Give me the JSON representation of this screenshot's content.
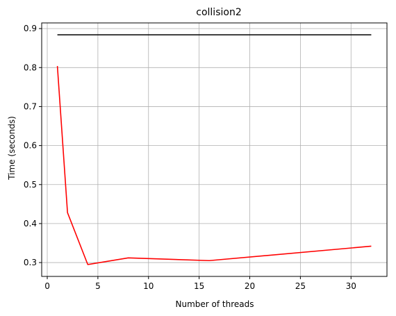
{
  "chart_data": {
    "type": "line",
    "title": "collision2",
    "xlabel": "Number of threads",
    "ylabel": "Time (seconds)",
    "xlim": [
      -0.55,
      33.55
    ],
    "ylim": [
      0.2645,
      0.9145
    ],
    "x_ticks": [
      0,
      5,
      10,
      15,
      20,
      25,
      30
    ],
    "y_ticks": [
      0.3,
      0.4,
      0.5,
      0.6,
      0.7,
      0.8,
      0.9
    ],
    "grid": true,
    "legend": "none",
    "series": [
      {
        "color": "#000000",
        "x": [
          1,
          32
        ],
        "y": [
          0.884,
          0.884
        ]
      },
      {
        "color": "#ff0000",
        "x": [
          1,
          2,
          4,
          8,
          16,
          32
        ],
        "y": [
          0.804,
          0.428,
          0.295,
          0.312,
          0.305,
          0.342
        ]
      }
    ]
  }
}
